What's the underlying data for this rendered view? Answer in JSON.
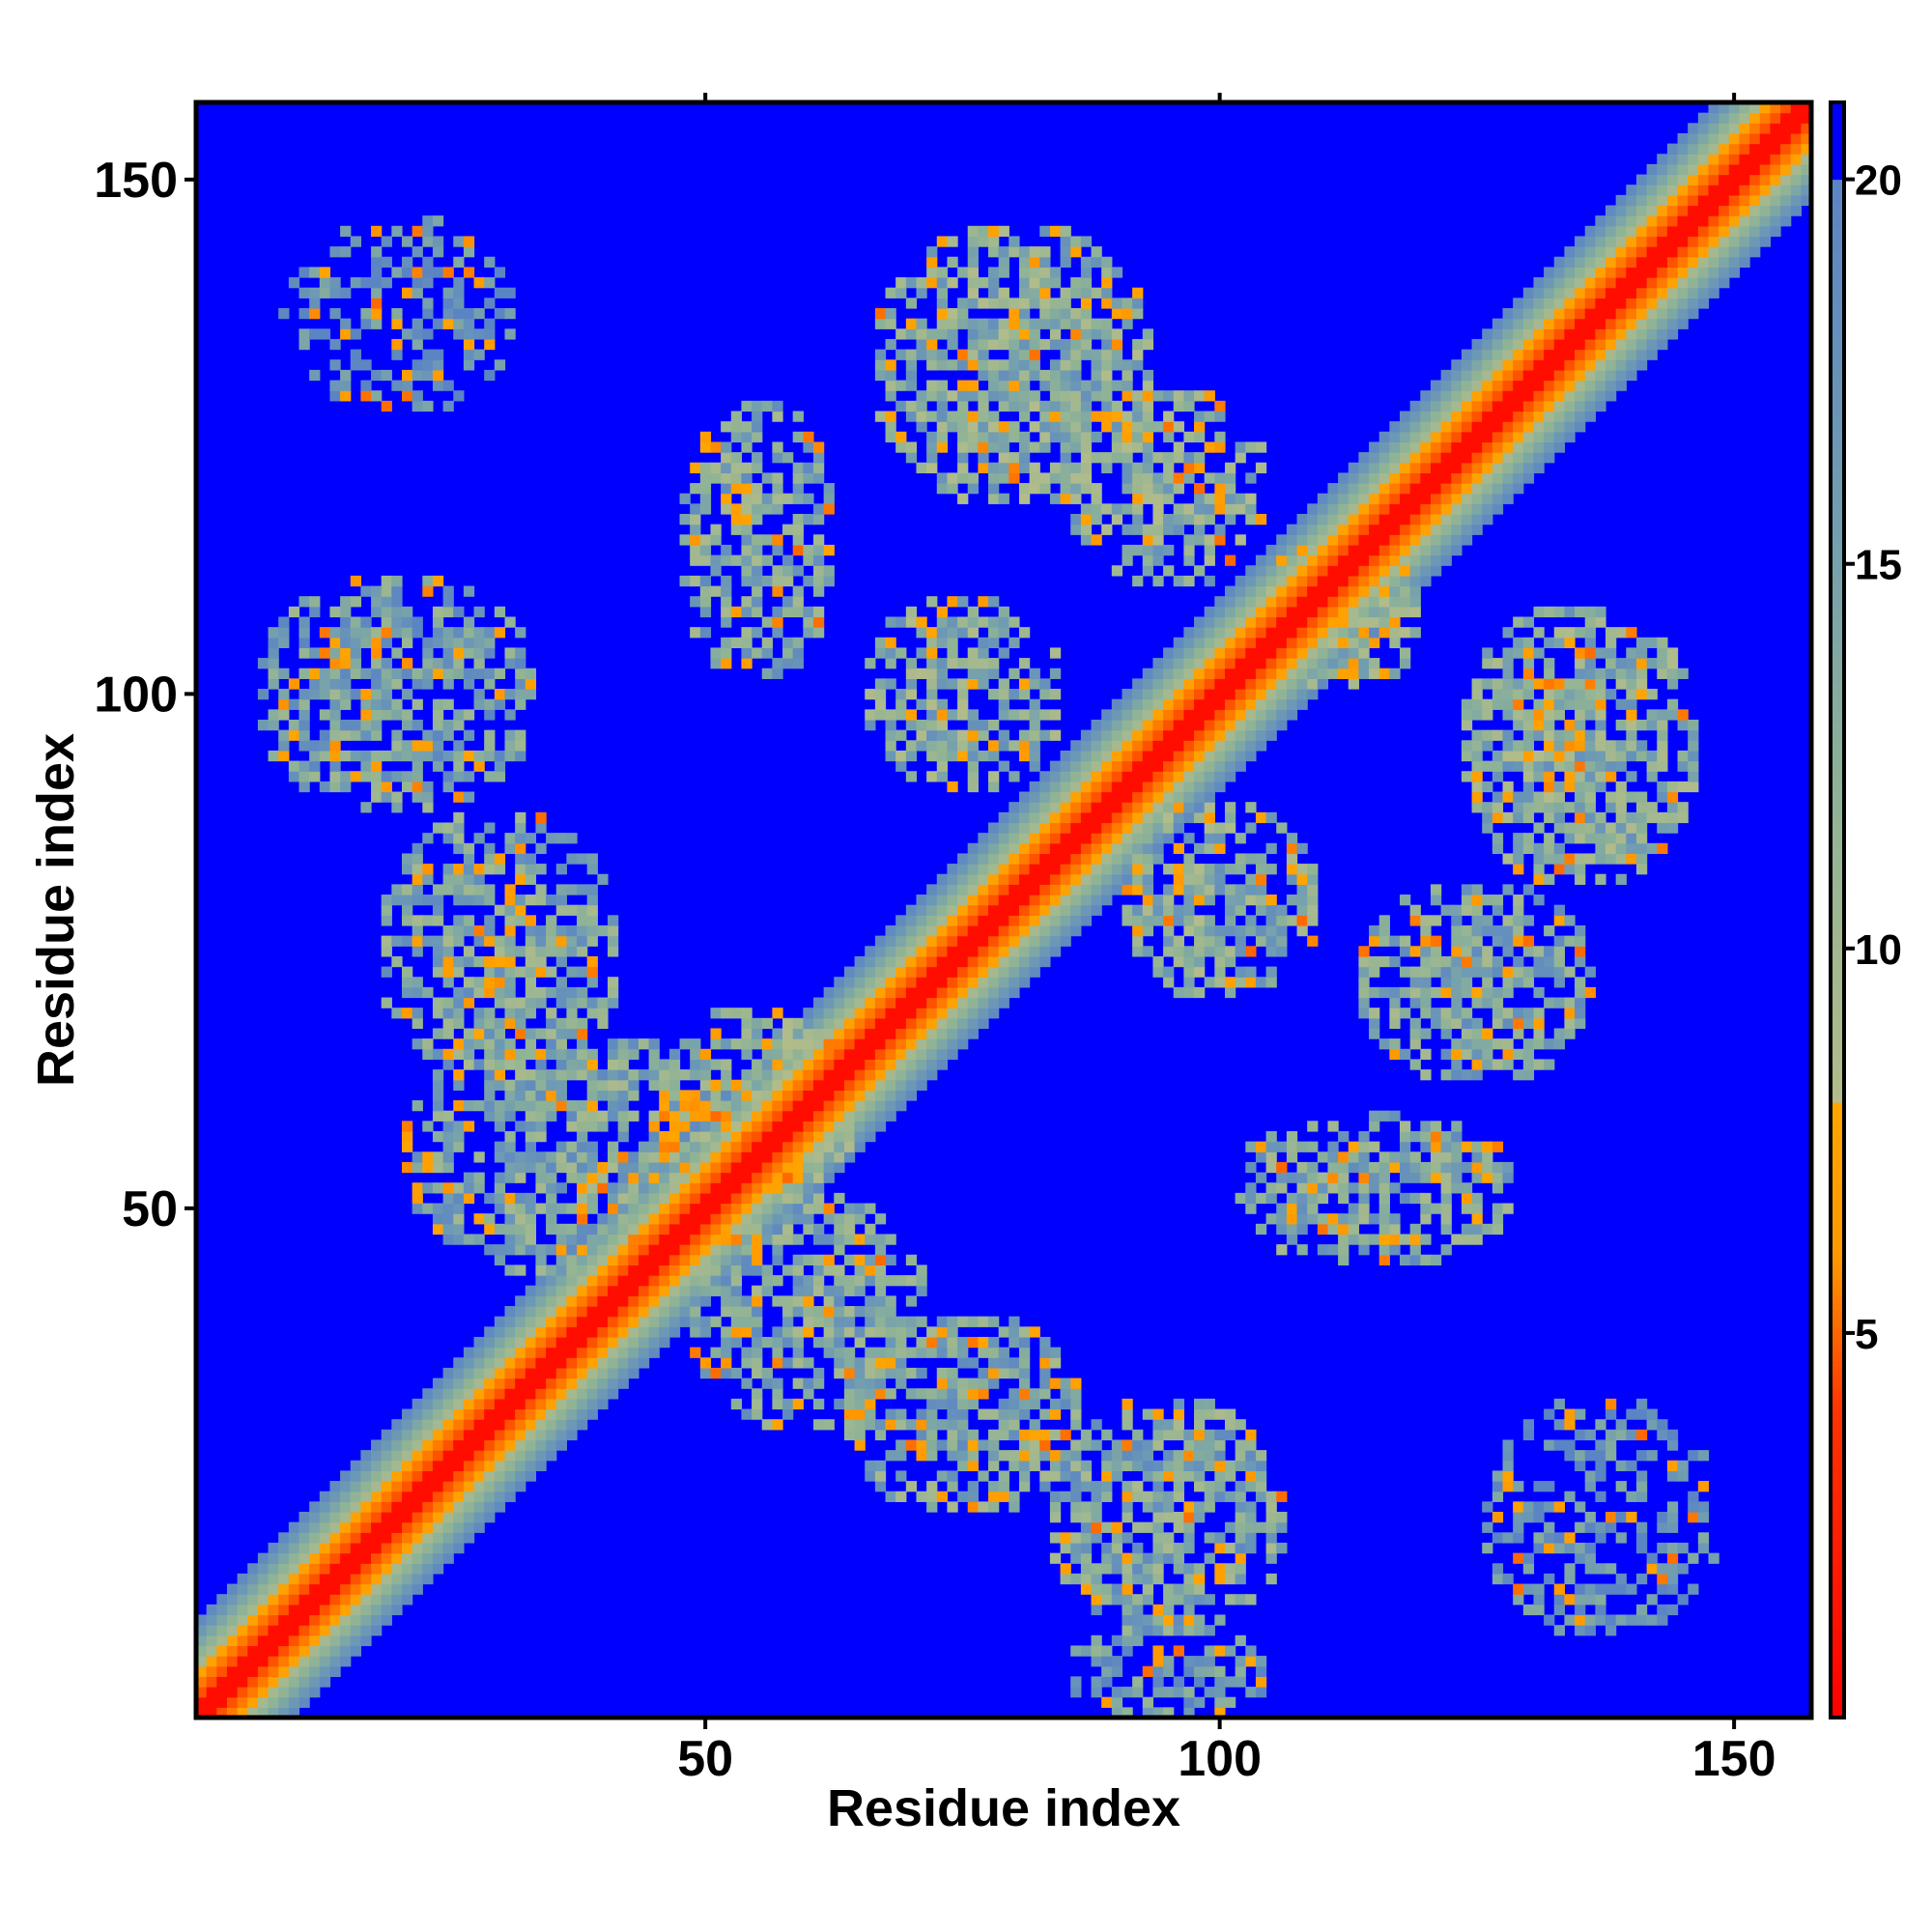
{
  "chart_data": {
    "type": "heatmap",
    "title": "",
    "xlabel": "Residue index",
    "ylabel": "Residue index",
    "xlim": [
      1,
      157
    ],
    "ylim": [
      1,
      157
    ],
    "n_residues": 157,
    "x_ticks": [
      50,
      100,
      150
    ],
    "y_ticks": [
      50,
      100,
      150
    ],
    "colorbar": {
      "min": 0,
      "max": 21,
      "ticks": [
        5,
        10,
        15,
        20
      ],
      "stops": [
        {
          "value": 0,
          "color": "#ff0000"
        },
        {
          "value": 4,
          "color": "#ff3300"
        },
        {
          "value": 6,
          "color": "#ff9900"
        },
        {
          "value": 8,
          "color": "#ffa500"
        },
        {
          "value": 8.01,
          "color": "#b3bc8a"
        },
        {
          "value": 12,
          "color": "#8fb396"
        },
        {
          "value": 16,
          "color": "#6f9bb3"
        },
        {
          "value": 20,
          "color": "#5b84c4"
        },
        {
          "value": 20.01,
          "color": "#0000ff"
        },
        {
          "value": 21,
          "color": "#0000ff"
        }
      ],
      "background_color": "#0000ff"
    },
    "structure": {
      "description_values_are_distances": true,
      "diagonal_band": {
        "full_width_residues": 9
      },
      "contact_regions": [
        {
          "x_center": 20,
          "y_center": 137,
          "x_halfwidth": 12,
          "y_halfwidth": 10,
          "mean": 18,
          "fill": 0.55
        },
        {
          "x_center": 20,
          "y_center": 100,
          "x_halfwidth": 14,
          "y_halfwidth": 12,
          "mean": 15,
          "fill": 0.75
        },
        {
          "x_center": 30,
          "y_center": 75,
          "x_halfwidth": 12,
          "y_halfwidth": 14,
          "mean": 14,
          "fill": 0.75
        },
        {
          "x_center": 38,
          "y_center": 55,
          "x_halfwidth": 18,
          "y_halfwidth": 12,
          "mean": 14,
          "fill": 0.75
        },
        {
          "x_center": 55,
          "y_center": 115,
          "x_halfwidth": 8,
          "y_halfwidth": 14,
          "mean": 14,
          "fill": 0.7
        },
        {
          "x_center": 80,
          "y_center": 132,
          "x_halfwidth": 14,
          "y_halfwidth": 14,
          "mean": 13,
          "fill": 0.8
        },
        {
          "x_center": 75,
          "y_center": 100,
          "x_halfwidth": 10,
          "y_halfwidth": 10,
          "mean": 13,
          "fill": 0.75
        },
        {
          "x_center": 95,
          "y_center": 120,
          "x_halfwidth": 10,
          "y_halfwidth": 10,
          "mean": 13,
          "fill": 0.75
        },
        {
          "x_center": 100,
          "y_center": 80,
          "x_halfwidth": 10,
          "y_halfwidth": 10,
          "mean": 13,
          "fill": 0.75
        },
        {
          "x_center": 135,
          "y_center": 95,
          "x_halfwidth": 12,
          "y_halfwidth": 14,
          "mean": 13,
          "fill": 0.8
        },
        {
          "x_center": 125,
          "y_center": 72,
          "x_halfwidth": 12,
          "y_halfwidth": 10,
          "mean": 14,
          "fill": 0.75
        },
        {
          "x_center": 115,
          "y_center": 52,
          "x_halfwidth": 14,
          "y_halfwidth": 8,
          "mean": 14,
          "fill": 0.7
        },
        {
          "x_center": 55,
          "y_center": 60,
          "x_halfwidth": 10,
          "y_halfwidth": 10,
          "mean": 12,
          "fill": 0.8
        },
        {
          "x_center": 60,
          "y_center": 40,
          "x_halfwidth": 12,
          "y_halfwidth": 12,
          "mean": 14,
          "fill": 0.75
        },
        {
          "x_center": 75,
          "y_center": 30,
          "x_halfwidth": 12,
          "y_halfwidth": 10,
          "mean": 14,
          "fill": 0.75
        },
        {
          "x_center": 95,
          "y_center": 20,
          "x_halfwidth": 12,
          "y_halfwidth": 12,
          "mean": 14,
          "fill": 0.75
        },
        {
          "x_center": 95,
          "y_center": 5,
          "x_halfwidth": 10,
          "y_halfwidth": 5,
          "mean": 16,
          "fill": 0.7
        },
        {
          "x_center": 137,
          "y_center": 20,
          "x_halfwidth": 12,
          "y_halfwidth": 12,
          "mean": 18,
          "fill": 0.55
        },
        {
          "x_center": 112,
          "y_center": 108,
          "x_halfwidth": 8,
          "y_halfwidth": 8,
          "mean": 11,
          "fill": 0.8
        }
      ]
    }
  }
}
